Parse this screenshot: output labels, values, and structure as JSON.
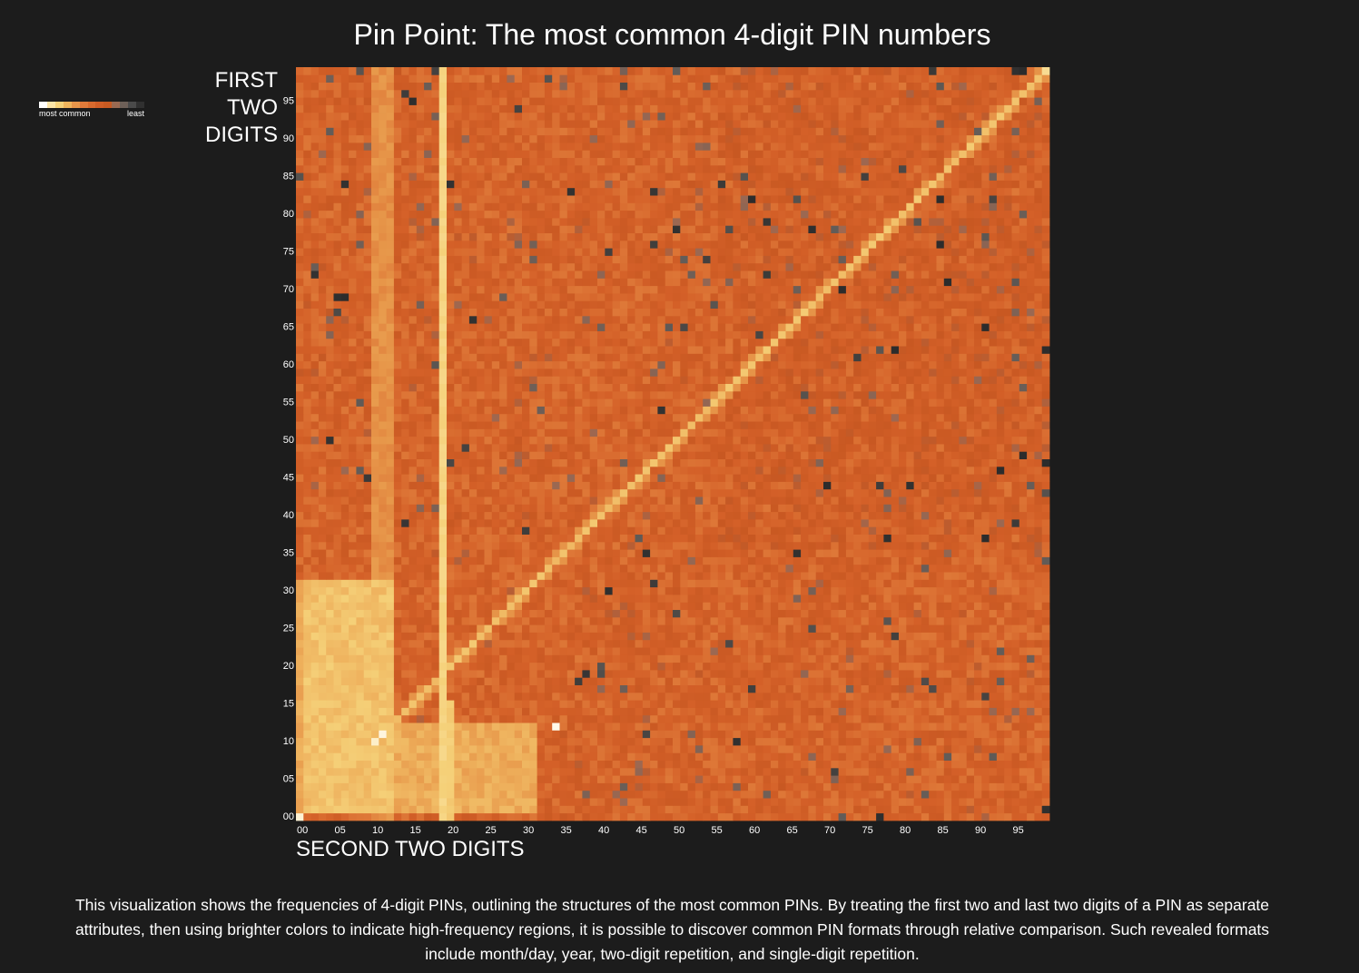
{
  "chart_data": {
    "type": "heatmap",
    "title": "Pin Point: The most common 4-digit PIN numbers",
    "xlabel": "SECOND TWO DIGITS",
    "ylabel": [
      "FIRST",
      "TWO",
      "DIGITS"
    ],
    "x_categories_range": [
      0,
      99
    ],
    "y_categories_range": [
      0,
      99
    ],
    "x_tick_labels": [
      "00",
      "05",
      "10",
      "15",
      "20",
      "25",
      "30",
      "35",
      "40",
      "45",
      "50",
      "55",
      "60",
      "65",
      "70",
      "75",
      "80",
      "85",
      "90",
      "95"
    ],
    "y_tick_labels": [
      "00",
      "05",
      "10",
      "15",
      "20",
      "25",
      "30",
      "35",
      "40",
      "45",
      "50",
      "55",
      "60",
      "65",
      "70",
      "75",
      "80",
      "85",
      "90",
      "95"
    ],
    "legend": {
      "most_label": "most common",
      "least_label": "least",
      "position": "top-left",
      "colors": [
        "#ffffff",
        "#fbe5a8",
        "#f6d27a",
        "#f0b55c",
        "#e8964a",
        "#e07a3a",
        "#d86a2e",
        "#d05e26",
        "#c85a22",
        "#9a6a52",
        "#6e6058",
        "#4a4a4a",
        "#303030"
      ]
    },
    "scale": "frequency rank (0 = most common, 1 = least common)",
    "notable_features": [
      {
        "name": "month/day block",
        "x_range": [
          1,
          12
        ],
        "y_range": [
          1,
          31
        ]
      },
      {
        "name": "day/month block",
        "x_range": [
          1,
          31
        ],
        "y_range": [
          1,
          12
        ]
      },
      {
        "name": "two-digit repetition diagonal",
        "rule": "x == y"
      },
      {
        "name": "year column 19xx",
        "x": 19
      },
      {
        "name": "year column 20xx",
        "x": 20,
        "y_range": [
          0,
          15
        ]
      },
      {
        "name": "single-digit repetition",
        "cells": [
          [
            0,
            0
          ],
          [
            11,
            11
          ],
          [
            22,
            22
          ],
          [
            33,
            33
          ],
          [
            44,
            44
          ],
          [
            55,
            55
          ],
          [
            66,
            66
          ],
          [
            77,
            77
          ],
          [
            88,
            88
          ],
          [
            99,
            99
          ]
        ]
      },
      {
        "name": "brightest cells",
        "cells": [
          [
            12,
            34
          ],
          [
            11,
            11
          ],
          [
            10,
            10
          ],
          [
            0,
            0
          ]
        ]
      }
    ]
  },
  "description": "This visualization shows the frequencies of 4-digit PINs, outlining the structures of the most common PINs. By treating the first two and last two digits of a PIN as separate attributes, then using brighter colors to indicate high-frequency regions, it is possible to discover common PIN formats through relative comparison. Such revealed formats include month/day, year, two-digit repetition, and single-digit repetition."
}
